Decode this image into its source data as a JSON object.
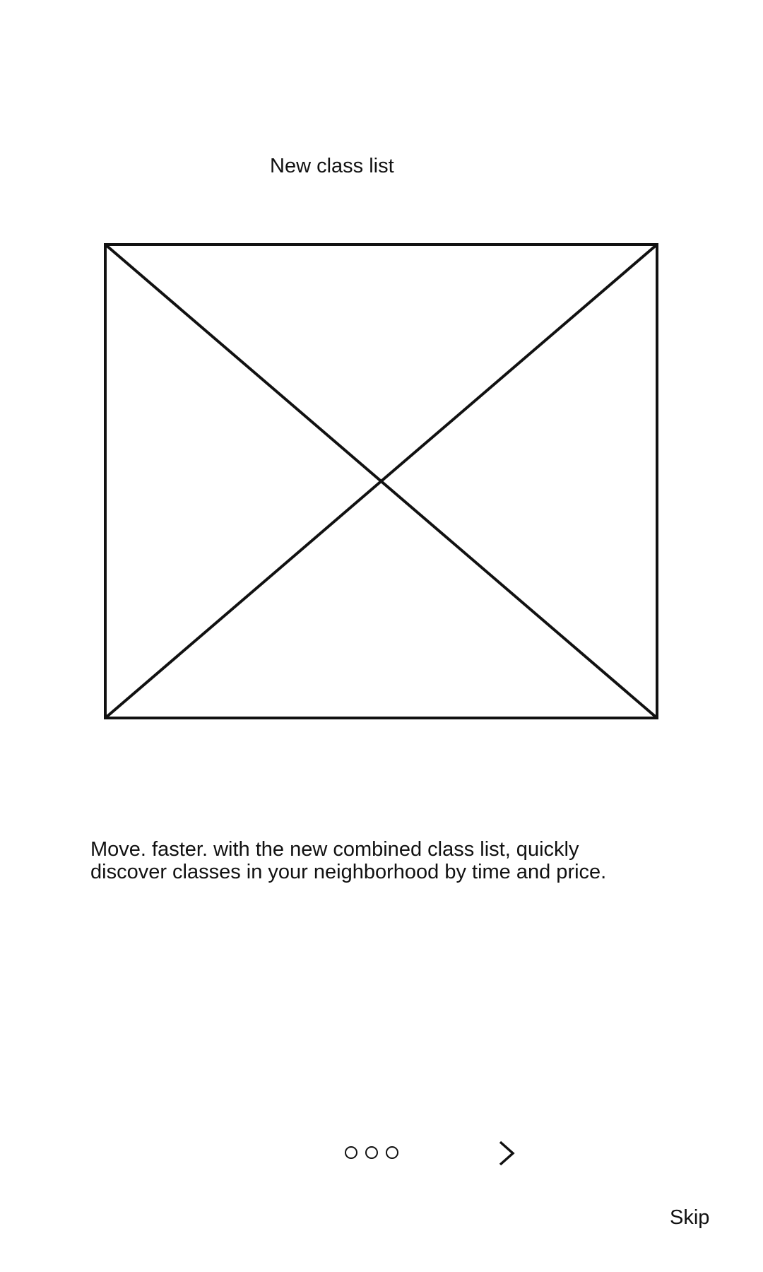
{
  "screen": {
    "title": "New class list",
    "description_lines": [
      "Move. faster. with the new combined class list, quickly",
      "discover classes in your neighborhood by time and price."
    ],
    "image_placeholder_icon": "image-placeholder-x"
  },
  "pager": {
    "total": 3,
    "icon": "circle-outline-icon"
  },
  "navigation": {
    "next_icon": "chevron-right-icon",
    "skip_label": "Skip"
  },
  "colors": {
    "background": "#ffffff",
    "foreground": "#111111"
  }
}
